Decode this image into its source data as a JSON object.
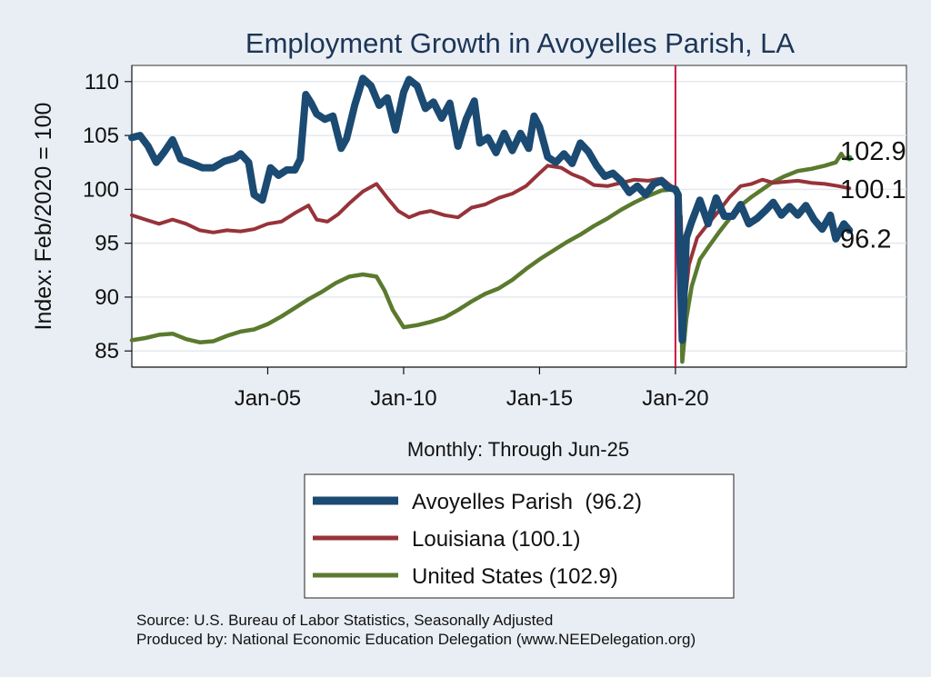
{
  "chart_data": {
    "type": "line",
    "title": "Employment Growth in Avoyelles Parish, LA",
    "ylabel": "Index: Feb/2020 = 100",
    "xlabel": "Monthly: Through Jun-25",
    "ylim": [
      83.5,
      111.5
    ],
    "xlim": [
      2000.0,
      2028.5
    ],
    "yticks": [
      85,
      90,
      95,
      100,
      105,
      110
    ],
    "xticks": [
      {
        "value": 2005.0,
        "label": "Jan-05"
      },
      {
        "value": 2010.0,
        "label": "Jan-10"
      },
      {
        "value": 2015.0,
        "label": "Jan-15"
      },
      {
        "value": 2020.0,
        "label": "Jan-20"
      }
    ],
    "vline": 2020.0,
    "colors": {
      "avoyelles": "#1b4a72",
      "louisiana": "#973339",
      "us": "#5a7a2e",
      "vline": "#c8173a",
      "end_dot": "#1e9a2a"
    },
    "series": [
      {
        "id": "avoyelles",
        "name": "Avoyelles Parish",
        "legend": "Avoyelles Parish  (96.2)",
        "end_label": "96.2",
        "points": [
          [
            2000.0,
            104.8
          ],
          [
            2000.3,
            105.0
          ],
          [
            2000.6,
            104.0
          ],
          [
            2000.9,
            102.5
          ],
          [
            2001.2,
            103.5
          ],
          [
            2001.5,
            104.6
          ],
          [
            2001.8,
            102.8
          ],
          [
            2002.2,
            102.4
          ],
          [
            2002.6,
            102.0
          ],
          [
            2003.0,
            102.0
          ],
          [
            2003.4,
            102.6
          ],
          [
            2003.8,
            102.9
          ],
          [
            2004.0,
            103.3
          ],
          [
            2004.3,
            102.5
          ],
          [
            2004.5,
            99.5
          ],
          [
            2004.8,
            99.0
          ],
          [
            2005.1,
            102.0
          ],
          [
            2005.4,
            101.3
          ],
          [
            2005.7,
            101.8
          ],
          [
            2006.0,
            101.8
          ],
          [
            2006.2,
            102.8
          ],
          [
            2006.4,
            108.8
          ],
          [
            2006.6,
            108.0
          ],
          [
            2006.8,
            107.0
          ],
          [
            2007.1,
            106.5
          ],
          [
            2007.4,
            106.8
          ],
          [
            2007.7,
            103.8
          ],
          [
            2007.9,
            104.7
          ],
          [
            2008.2,
            107.8
          ],
          [
            2008.5,
            110.3
          ],
          [
            2008.8,
            109.6
          ],
          [
            2009.1,
            107.8
          ],
          [
            2009.4,
            108.5
          ],
          [
            2009.7,
            105.5
          ],
          [
            2010.0,
            109.0
          ],
          [
            2010.2,
            110.2
          ],
          [
            2010.5,
            109.6
          ],
          [
            2010.8,
            107.5
          ],
          [
            2011.1,
            108.1
          ],
          [
            2011.4,
            106.6
          ],
          [
            2011.7,
            108.0
          ],
          [
            2012.0,
            104.0
          ],
          [
            2012.3,
            106.5
          ],
          [
            2012.6,
            108.2
          ],
          [
            2012.8,
            104.3
          ],
          [
            2013.1,
            104.8
          ],
          [
            2013.4,
            103.4
          ],
          [
            2013.7,
            105.2
          ],
          [
            2014.0,
            103.6
          ],
          [
            2014.3,
            105.2
          ],
          [
            2014.6,
            103.8
          ],
          [
            2014.8,
            106.8
          ],
          [
            2015.0,
            105.8
          ],
          [
            2015.3,
            103.0
          ],
          [
            2015.6,
            102.5
          ],
          [
            2015.9,
            103.3
          ],
          [
            2016.2,
            102.4
          ],
          [
            2016.5,
            104.3
          ],
          [
            2016.8,
            103.5
          ],
          [
            2017.1,
            102.2
          ],
          [
            2017.4,
            101.2
          ],
          [
            2017.7,
            101.5
          ],
          [
            2018.0,
            100.8
          ],
          [
            2018.3,
            99.7
          ],
          [
            2018.6,
            100.3
          ],
          [
            2018.9,
            99.5
          ],
          [
            2019.2,
            100.5
          ],
          [
            2019.5,
            100.8
          ],
          [
            2019.7,
            100.2
          ],
          [
            2020.0,
            100.0
          ],
          [
            2020.1,
            99.5
          ],
          [
            2020.25,
            86.0
          ],
          [
            2020.4,
            95.5
          ],
          [
            2020.6,
            97.0
          ],
          [
            2020.9,
            99.0
          ],
          [
            2021.2,
            96.8
          ],
          [
            2021.5,
            99.2
          ],
          [
            2021.8,
            97.5
          ],
          [
            2022.1,
            97.5
          ],
          [
            2022.4,
            98.6
          ],
          [
            2022.7,
            96.8
          ],
          [
            2023.0,
            97.3
          ],
          [
            2023.3,
            98.0
          ],
          [
            2023.6,
            98.8
          ],
          [
            2023.9,
            97.6
          ],
          [
            2024.2,
            98.4
          ],
          [
            2024.5,
            97.6
          ],
          [
            2024.8,
            98.5
          ],
          [
            2025.1,
            97.2
          ],
          [
            2025.4,
            96.3
          ],
          [
            2025.7,
            97.6
          ],
          [
            2025.9,
            95.4
          ],
          [
            2026.2,
            96.8
          ],
          [
            2026.4,
            96.2
          ]
        ]
      },
      {
        "id": "louisiana",
        "name": "Louisiana",
        "legend": "Louisiana (100.1)",
        "end_label": "100.1",
        "points": [
          [
            2000.0,
            97.6
          ],
          [
            2000.5,
            97.2
          ],
          [
            2001.0,
            96.8
          ],
          [
            2001.5,
            97.2
          ],
          [
            2002.0,
            96.8
          ],
          [
            2002.5,
            96.2
          ],
          [
            2003.0,
            96.0
          ],
          [
            2003.5,
            96.2
          ],
          [
            2004.0,
            96.1
          ],
          [
            2004.5,
            96.3
          ],
          [
            2005.0,
            96.8
          ],
          [
            2005.5,
            97.0
          ],
          [
            2006.0,
            97.8
          ],
          [
            2006.5,
            98.5
          ],
          [
            2006.8,
            97.2
          ],
          [
            2007.2,
            97.0
          ],
          [
            2007.6,
            97.7
          ],
          [
            2008.0,
            98.7
          ],
          [
            2008.5,
            99.8
          ],
          [
            2009.0,
            100.5
          ],
          [
            2009.4,
            99.2
          ],
          [
            2009.8,
            98.0
          ],
          [
            2010.2,
            97.4
          ],
          [
            2010.6,
            97.8
          ],
          [
            2011.0,
            98.0
          ],
          [
            2011.5,
            97.6
          ],
          [
            2012.0,
            97.4
          ],
          [
            2012.5,
            98.3
          ],
          [
            2013.0,
            98.6
          ],
          [
            2013.5,
            99.2
          ],
          [
            2014.0,
            99.6
          ],
          [
            2014.5,
            100.3
          ],
          [
            2015.0,
            101.5
          ],
          [
            2015.3,
            102.2
          ],
          [
            2015.8,
            102.0
          ],
          [
            2016.2,
            101.4
          ],
          [
            2016.6,
            101.0
          ],
          [
            2017.0,
            100.4
          ],
          [
            2017.5,
            100.3
          ],
          [
            2018.0,
            100.6
          ],
          [
            2018.5,
            100.9
          ],
          [
            2019.0,
            100.8
          ],
          [
            2019.5,
            101.0
          ],
          [
            2020.0,
            100.0
          ],
          [
            2020.2,
            97.5
          ],
          [
            2020.3,
            88.5
          ],
          [
            2020.5,
            93.0
          ],
          [
            2020.8,
            95.5
          ],
          [
            2021.2,
            96.8
          ],
          [
            2021.6,
            98.0
          ],
          [
            2022.0,
            99.3
          ],
          [
            2022.4,
            100.3
          ],
          [
            2022.8,
            100.5
          ],
          [
            2023.2,
            100.9
          ],
          [
            2023.6,
            100.6
          ],
          [
            2024.0,
            100.7
          ],
          [
            2024.5,
            100.8
          ],
          [
            2025.0,
            100.6
          ],
          [
            2025.5,
            100.5
          ],
          [
            2026.0,
            100.3
          ],
          [
            2026.4,
            100.1
          ]
        ]
      },
      {
        "id": "us",
        "name": "United States",
        "legend": "United States (102.9)",
        "end_label": "102.9",
        "points": [
          [
            2000.0,
            86.0
          ],
          [
            2000.5,
            86.2
          ],
          [
            2001.0,
            86.5
          ],
          [
            2001.5,
            86.6
          ],
          [
            2002.0,
            86.1
          ],
          [
            2002.5,
            85.8
          ],
          [
            2003.0,
            85.9
          ],
          [
            2003.5,
            86.4
          ],
          [
            2004.0,
            86.8
          ],
          [
            2004.5,
            87.0
          ],
          [
            2005.0,
            87.5
          ],
          [
            2005.5,
            88.2
          ],
          [
            2006.0,
            89.0
          ],
          [
            2006.5,
            89.8
          ],
          [
            2007.0,
            90.5
          ],
          [
            2007.5,
            91.3
          ],
          [
            2008.0,
            91.9
          ],
          [
            2008.5,
            92.1
          ],
          [
            2009.0,
            91.9
          ],
          [
            2009.3,
            90.6
          ],
          [
            2009.6,
            88.8
          ],
          [
            2010.0,
            87.2
          ],
          [
            2010.5,
            87.4
          ],
          [
            2011.0,
            87.7
          ],
          [
            2011.5,
            88.1
          ],
          [
            2012.0,
            88.8
          ],
          [
            2012.5,
            89.6
          ],
          [
            2013.0,
            90.3
          ],
          [
            2013.5,
            90.8
          ],
          [
            2014.0,
            91.6
          ],
          [
            2014.5,
            92.6
          ],
          [
            2015.0,
            93.5
          ],
          [
            2015.5,
            94.3
          ],
          [
            2016.0,
            95.1
          ],
          [
            2016.5,
            95.8
          ],
          [
            2017.0,
            96.6
          ],
          [
            2017.5,
            97.3
          ],
          [
            2018.0,
            98.1
          ],
          [
            2018.5,
            98.8
          ],
          [
            2019.0,
            99.4
          ],
          [
            2019.5,
            99.9
          ],
          [
            2020.0,
            100.0
          ],
          [
            2020.15,
            99.5
          ],
          [
            2020.25,
            84.0
          ],
          [
            2020.4,
            88.0
          ],
          [
            2020.6,
            91.0
          ],
          [
            2020.9,
            93.5
          ],
          [
            2021.2,
            94.6
          ],
          [
            2021.6,
            96.0
          ],
          [
            2022.0,
            97.3
          ],
          [
            2022.4,
            98.5
          ],
          [
            2022.8,
            99.3
          ],
          [
            2023.2,
            100.0
          ],
          [
            2023.6,
            100.7
          ],
          [
            2024.0,
            101.2
          ],
          [
            2024.5,
            101.7
          ],
          [
            2025.0,
            101.9
          ],
          [
            2025.5,
            102.2
          ],
          [
            2025.9,
            102.5
          ],
          [
            2026.1,
            103.3
          ],
          [
            2026.2,
            102.9
          ],
          [
            2026.4,
            102.9
          ]
        ]
      }
    ]
  },
  "footer": {
    "source": "Source: U.S. Bureau of Labor Statistics, Seasonally Adjusted",
    "produced": "Produced by: National Economic Education Delegation (www.NEEDelegation.org)"
  }
}
